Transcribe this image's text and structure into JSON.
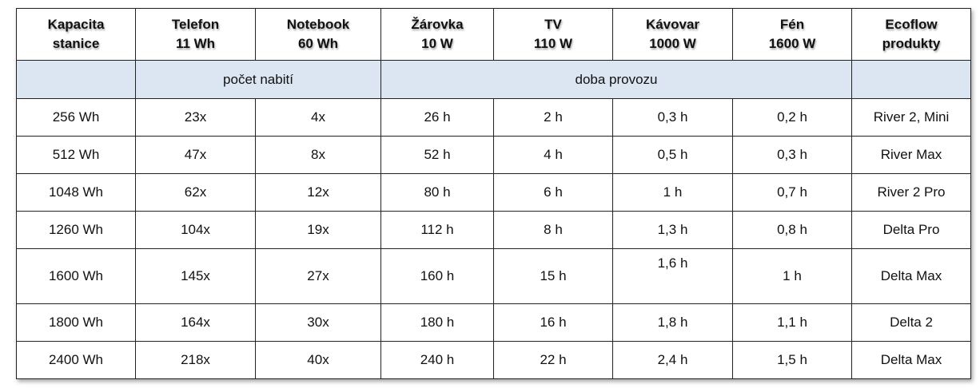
{
  "table": {
    "header": [
      [
        "Kapacita",
        "stanice"
      ],
      [
        "Telefon",
        "11 Wh"
      ],
      [
        "Notebook",
        "60 Wh"
      ],
      [
        "Žárovka",
        "10 W"
      ],
      [
        "TV",
        "110 W"
      ],
      [
        "Kávovar",
        "1000 W"
      ],
      [
        "Fén",
        "1600 W"
      ],
      [
        "Ecoflow",
        "produkty"
      ]
    ],
    "groups": [
      "počet nabití",
      "doba provozu"
    ],
    "rows": [
      [
        "256 Wh",
        "23x",
        "4x",
        "26 h",
        "2 h",
        "0,3 h",
        "0,2 h",
        "River 2, Mini"
      ],
      [
        "512 Wh",
        "47x",
        "8x",
        "52 h",
        "4 h",
        "0,5 h",
        "0,3 h",
        "River Max"
      ],
      [
        "1048 Wh",
        "62x",
        "12x",
        "80 h",
        "6 h",
        "1 h",
        "0,7 h",
        "River 2 Pro"
      ],
      [
        "1260 Wh",
        "104x",
        "19x",
        "112 h",
        "8 h",
        "1,3 h",
        "0,8 h",
        "Delta Pro"
      ],
      [
        "1600 Wh",
        "145x",
        "27x",
        "160 h",
        "15 h",
        "1,6 h",
        "1 h",
        "Delta Max"
      ],
      [
        "1800 Wh",
        "164x",
        "30x",
        "180 h",
        "16 h",
        "1,8 h",
        "1,1 h",
        "Delta 2"
      ],
      [
        "2400 Wh",
        "218x",
        "40x",
        "240 h",
        "22 h",
        "2,4 h",
        "1,5 h",
        "Delta Max"
      ]
    ]
  }
}
